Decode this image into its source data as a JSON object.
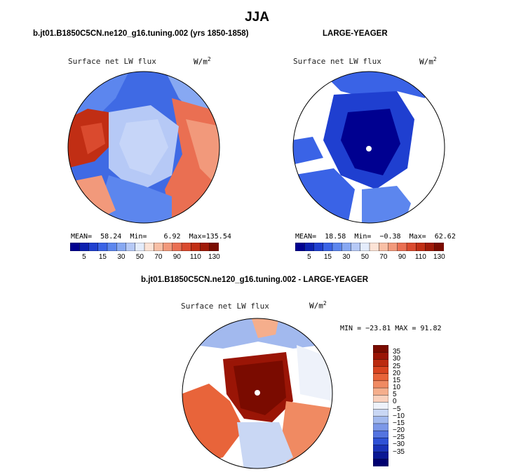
{
  "title": "JJA",
  "units": "W/m",
  "units_exp": "2",
  "colors": {
    "seq": [
      "#000090",
      "#0a1fb0",
      "#1f3fd0",
      "#3a63e6",
      "#5c86ee",
      "#87a8f2",
      "#b6c9f6",
      "#e4ecfb",
      "#fce3d6",
      "#f8bfa5",
      "#f2997b",
      "#ea6f52",
      "#da4a2e",
      "#c12e14",
      "#a01a08",
      "#7a0b00"
    ],
    "diff": [
      "#7a0b00",
      "#9a1506",
      "#bb2b10",
      "#d84420",
      "#e8643a",
      "#f08a62",
      "#f5ae8c",
      "#fad0bc",
      "#eef2fa",
      "#c9d7f4",
      "#a2b9ee",
      "#7c98e8",
      "#5474e0",
      "#2f52d6",
      "#1a33b8",
      "#0a1894",
      "#000070"
    ]
  },
  "chart_data": [
    {
      "type": "heatmap",
      "projection": "north-polar-stereographic",
      "title": "b.jt01.B1850C5CN.ne120_g16.tuning.002 (yrs 1850-1858)",
      "variable": "Surface net LW flux",
      "stats": {
        "mean": 58.24,
        "min": 6.92,
        "max": 135.54
      },
      "stats_text": {
        "mean_label": "MEAN=",
        "mean": "58.24",
        "min_label": "Min=",
        "min": "6.92",
        "max_label": "Max=",
        "max": "135.54"
      },
      "colorbar_ticks": [
        "5",
        "15",
        "30",
        "50",
        "70",
        "90",
        "110",
        "130"
      ]
    },
    {
      "type": "heatmap",
      "projection": "north-polar-stereographic",
      "title": "LARGE-YEAGER",
      "variable": "Surface net LW flux",
      "stats": {
        "mean": 18.58,
        "min": -0.38,
        "max": 62.62
      },
      "stats_text": {
        "mean_label": "MEAN=",
        "mean": "18.58",
        "min_label": "Min=",
        "min": "−0.38",
        "max_label": "Max=",
        "max": "62.62"
      },
      "colorbar_ticks": [
        "5",
        "15",
        "30",
        "50",
        "70",
        "90",
        "110",
        "130"
      ]
    },
    {
      "type": "heatmap",
      "projection": "north-polar-stereographic",
      "title": "b.jt01.B1850C5CN.ne120_g16.tuning.002 - LARGE-YEAGER",
      "variable": "Surface net LW flux",
      "stats": {
        "min": -23.81,
        "max": 91.82
      },
      "stats_text": "MIN = −23.81  MAX =   91.82",
      "colorbar_ticks": [
        "35",
        "30",
        "25",
        "20",
        "15",
        "10",
        "5",
        "0",
        "−5",
        "−10",
        "−15",
        "−20",
        "−25",
        "−30",
        "−35"
      ]
    }
  ]
}
